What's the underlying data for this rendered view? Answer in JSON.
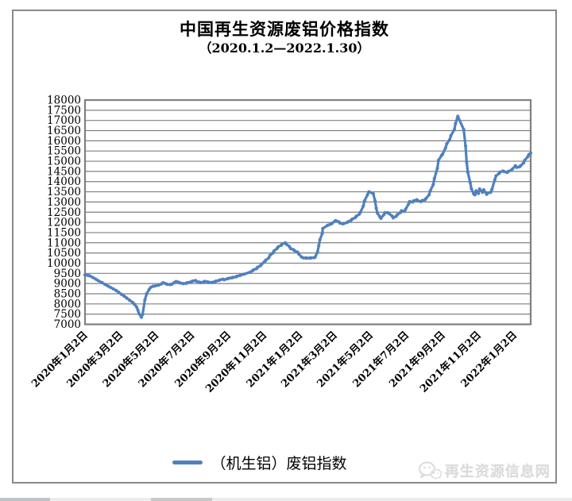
{
  "header": {
    "title": "中国再生资源废铝价格指数",
    "subtitle": "（2020.1.2—2022.1.30）"
  },
  "legend": {
    "label": "（机生铝）废铝指数",
    "line_color": "#4F81BD"
  },
  "watermark": {
    "text": "再生资源信息网",
    "icon": "chat-bubbles-icon",
    "color": "#dadada"
  },
  "colors": {
    "series": "#4F81BD",
    "gridline": "#808080",
    "frame_border": "#8a8a8a",
    "axis_text": "#000000"
  },
  "chart_data": {
    "type": "line",
    "title": "中国再生资源废铝价格指数",
    "subtitle": "（2020.1.2—2022.1.30）",
    "ylabel": "",
    "xlabel": "",
    "ylim": [
      7000,
      18000
    ],
    "y_ticks": [
      7000,
      7500,
      8000,
      8500,
      9000,
      9500,
      10000,
      10500,
      11000,
      11500,
      12000,
      12500,
      13000,
      13500,
      14000,
      14500,
      15000,
      15500,
      16000,
      16500,
      17000,
      17500,
      18000
    ],
    "grid": "horizontal-only",
    "legend_position": "bottom-center",
    "x_range": [
      "2020/1/2",
      "2022/1/30"
    ],
    "x_tick_labels": [
      {
        "label": "2020年1月2日",
        "date": "2020/1/2"
      },
      {
        "label": "2020年3月2日",
        "date": "2020/3/2"
      },
      {
        "label": "2020年5月2日",
        "date": "2020/5/2"
      },
      {
        "label": "2020年7月2日",
        "date": "2020/7/2"
      },
      {
        "label": "2020年9月2日",
        "date": "2020/9/2"
      },
      {
        "label": "2020年11月2日",
        "date": "2020/11/2"
      },
      {
        "label": "2021年1月2日",
        "date": "2021/1/2"
      },
      {
        "label": "2021年3月2日",
        "date": "2021/3/2"
      },
      {
        "label": "2021年5月2日",
        "date": "2021/5/2"
      },
      {
        "label": "2021年7月2日",
        "date": "2021/7/2"
      },
      {
        "label": "2021年9月2日",
        "date": "2021/9/2"
      },
      {
        "label": "2021年11月2日",
        "date": "2021/11/2"
      },
      {
        "label": "2022年1月2日",
        "date": "2022/1/2"
      }
    ],
    "series": [
      {
        "name": "（机生铝）废铝指数",
        "color": "#4F81BD",
        "points": [
          [
            "2020/1/2",
            9430
          ],
          [
            "2020/1/7",
            9400
          ],
          [
            "2020/1/10",
            9380
          ],
          [
            "2020/1/15",
            9300
          ],
          [
            "2020/1/20",
            9220
          ],
          [
            "2020/1/24",
            9150
          ],
          [
            "2020/1/31",
            9050
          ],
          [
            "2020/2/5",
            8960
          ],
          [
            "2020/2/10",
            8880
          ],
          [
            "2020/2/14",
            8820
          ],
          [
            "2020/2/19",
            8740
          ],
          [
            "2020/2/24",
            8660
          ],
          [
            "2020/2/28",
            8580
          ],
          [
            "2020/3/4",
            8470
          ],
          [
            "2020/3/9",
            8380
          ],
          [
            "2020/3/13",
            8290
          ],
          [
            "2020/3/18",
            8180
          ],
          [
            "2020/3/23",
            8080
          ],
          [
            "2020/3/26",
            7990
          ],
          [
            "2020/3/30",
            7850
          ],
          [
            "2020/4/1",
            7700
          ],
          [
            "2020/4/3",
            7520
          ],
          [
            "2020/4/7",
            7350
          ],
          [
            "2020/4/9",
            7480
          ],
          [
            "2020/4/13",
            8200
          ],
          [
            "2020/4/16",
            8500
          ],
          [
            "2020/4/20",
            8700
          ],
          [
            "2020/4/23",
            8820
          ],
          [
            "2020/4/27",
            8870
          ],
          [
            "2020/4/30",
            8880
          ],
          [
            "2020/5/6",
            8920
          ],
          [
            "2020/5/11",
            8980
          ],
          [
            "2020/5/14",
            9040
          ],
          [
            "2020/5/18",
            9000
          ],
          [
            "2020/5/21",
            8960
          ],
          [
            "2020/5/26",
            8950
          ],
          [
            "2020/5/29",
            8970
          ],
          [
            "2020/6/2",
            9050
          ],
          [
            "2020/6/5",
            9100
          ],
          [
            "2020/6/9",
            9070
          ],
          [
            "2020/6/12",
            9030
          ],
          [
            "2020/6/17",
            9000
          ],
          [
            "2020/6/22",
            9010
          ],
          [
            "2020/6/24",
            9040
          ],
          [
            "2020/6/30",
            9080
          ],
          [
            "2020/7/3",
            9120
          ],
          [
            "2020/7/8",
            9150
          ],
          [
            "2020/7/10",
            9110
          ],
          [
            "2020/7/15",
            9070
          ],
          [
            "2020/7/17",
            9050
          ],
          [
            "2020/7/22",
            9080
          ],
          [
            "2020/7/24",
            9110
          ],
          [
            "2020/7/29",
            9080
          ],
          [
            "2020/7/31",
            9060
          ],
          [
            "2020/8/5",
            9060
          ],
          [
            "2020/8/10",
            9090
          ],
          [
            "2020/8/12",
            9120
          ],
          [
            "2020/8/17",
            9150
          ],
          [
            "2020/8/19",
            9180
          ],
          [
            "2020/8/24",
            9210
          ],
          [
            "2020/8/26",
            9190
          ],
          [
            "2020/8/31",
            9230
          ],
          [
            "2020/9/3",
            9260
          ],
          [
            "2020/9/8",
            9280
          ],
          [
            "2020/9/10",
            9300
          ],
          [
            "2020/9/15",
            9330
          ],
          [
            "2020/9/17",
            9360
          ],
          [
            "2020/9/22",
            9400
          ],
          [
            "2020/9/24",
            9430
          ],
          [
            "2020/9/29",
            9460
          ],
          [
            "2020/10/9",
            9560
          ],
          [
            "2020/10/13",
            9620
          ],
          [
            "2020/10/15",
            9670
          ],
          [
            "2020/10/20",
            9730
          ],
          [
            "2020/10/22",
            9800
          ],
          [
            "2020/10/27",
            9880
          ],
          [
            "2020/10/29",
            9960
          ],
          [
            "2020/11/3",
            10080
          ],
          [
            "2020/11/5",
            10150
          ],
          [
            "2020/11/10",
            10260
          ],
          [
            "2020/11/12",
            10380
          ],
          [
            "2020/11/17",
            10500
          ],
          [
            "2020/11/19",
            10600
          ],
          [
            "2020/11/24",
            10720
          ],
          [
            "2020/11/26",
            10800
          ],
          [
            "2020/12/1",
            10880
          ],
          [
            "2020/12/3",
            10940
          ],
          [
            "2020/12/8",
            11000
          ],
          [
            "2020/12/10",
            10930
          ],
          [
            "2020/12/15",
            10820
          ],
          [
            "2020/12/17",
            10720
          ],
          [
            "2020/12/22",
            10660
          ],
          [
            "2020/12/24",
            10610
          ],
          [
            "2020/12/29",
            10540
          ],
          [
            "2020/12/31",
            10450
          ],
          [
            "2021/1/5",
            10300
          ],
          [
            "2021/1/8",
            10260
          ],
          [
            "2021/1/12",
            10250
          ],
          [
            "2021/1/14",
            10250
          ],
          [
            "2021/1/19",
            10250
          ],
          [
            "2021/1/21",
            10260
          ],
          [
            "2021/1/26",
            10270
          ],
          [
            "2021/1/28",
            10300
          ],
          [
            "2021/2/1",
            10550
          ],
          [
            "2021/2/3",
            10850
          ],
          [
            "2021/2/5",
            11150
          ],
          [
            "2021/2/9",
            11450
          ],
          [
            "2021/2/10",
            11700
          ],
          [
            "2021/2/18",
            11850
          ],
          [
            "2021/2/22",
            11900
          ],
          [
            "2021/2/24",
            11930
          ],
          [
            "2021/2/26",
            11960
          ],
          [
            "2021/3/2",
            12050
          ],
          [
            "2021/3/4",
            12090
          ],
          [
            "2021/3/9",
            12030
          ],
          [
            "2021/3/11",
            11970
          ],
          [
            "2021/3/16",
            11930
          ],
          [
            "2021/3/18",
            11950
          ],
          [
            "2021/3/23",
            11990
          ],
          [
            "2021/3/25",
            12030
          ],
          [
            "2021/3/30",
            12100
          ],
          [
            "2021/4/1",
            12160
          ],
          [
            "2021/4/6",
            12230
          ],
          [
            "2021/4/8",
            12300
          ],
          [
            "2021/4/13",
            12400
          ],
          [
            "2021/4/15",
            12500
          ],
          [
            "2021/4/20",
            12800
          ],
          [
            "2021/4/22",
            13050
          ],
          [
            "2021/4/27",
            13350
          ],
          [
            "2021/4/29",
            13480
          ],
          [
            "2021/4/30",
            13500
          ],
          [
            "2021/5/7",
            13400
          ],
          [
            "2021/5/10",
            13050
          ],
          [
            "2021/5/12",
            12700
          ],
          [
            "2021/5/14",
            12450
          ],
          [
            "2021/5/18",
            12280
          ],
          [
            "2021/5/20",
            12200
          ],
          [
            "2021/5/25",
            12380
          ],
          [
            "2021/5/27",
            12480
          ],
          [
            "2021/6/1",
            12470
          ],
          [
            "2021/6/3",
            12430
          ],
          [
            "2021/6/8",
            12310
          ],
          [
            "2021/6/10",
            12220
          ],
          [
            "2021/6/15",
            12300
          ],
          [
            "2021/6/17",
            12380
          ],
          [
            "2021/6/22",
            12480
          ],
          [
            "2021/6/24",
            12570
          ],
          [
            "2021/6/29",
            12540
          ],
          [
            "2021/7/1",
            12650
          ],
          [
            "2021/7/6",
            12900
          ],
          [
            "2021/7/8",
            13020
          ],
          [
            "2021/7/13",
            13000
          ],
          [
            "2021/7/15",
            13060
          ],
          [
            "2021/7/20",
            13110
          ],
          [
            "2021/7/22",
            13060
          ],
          [
            "2021/7/27",
            13020
          ],
          [
            "2021/7/29",
            13070
          ],
          [
            "2021/8/3",
            13110
          ],
          [
            "2021/8/5",
            13180
          ],
          [
            "2021/8/10",
            13350
          ],
          [
            "2021/8/12",
            13550
          ],
          [
            "2021/8/17",
            13850
          ],
          [
            "2021/8/19",
            14150
          ],
          [
            "2021/8/24",
            14650
          ],
          [
            "2021/8/26",
            15050
          ],
          [
            "2021/8/31",
            15280
          ],
          [
            "2021/9/2",
            15350
          ],
          [
            "2021/9/7",
            15650
          ],
          [
            "2021/9/9",
            15850
          ],
          [
            "2021/9/14",
            16050
          ],
          [
            "2021/9/16",
            16250
          ],
          [
            "2021/9/22",
            16550
          ],
          [
            "2021/9/24",
            16850
          ],
          [
            "2021/9/27",
            17100
          ],
          [
            "2021/9/28",
            17200
          ],
          [
            "2021/10/8",
            16550
          ],
          [
            "2021/10/11",
            15750
          ],
          [
            "2021/10/13",
            14950
          ],
          [
            "2021/10/15",
            14450
          ],
          [
            "2021/10/19",
            13950
          ],
          [
            "2021/10/21",
            13650
          ],
          [
            "2021/10/25",
            13400
          ],
          [
            "2021/10/27",
            13350
          ],
          [
            "2021/10/29",
            13550
          ],
          [
            "2021/11/2",
            13420
          ],
          [
            "2021/11/4",
            13640
          ],
          [
            "2021/11/9",
            13480
          ],
          [
            "2021/11/11",
            13600
          ],
          [
            "2021/11/16",
            13380
          ],
          [
            "2021/11/18",
            13440
          ],
          [
            "2021/11/23",
            13480
          ],
          [
            "2021/11/25",
            13620
          ],
          [
            "2021/11/30",
            14100
          ],
          [
            "2021/12/2",
            14280
          ],
          [
            "2021/12/7",
            14400
          ],
          [
            "2021/12/9",
            14470
          ],
          [
            "2021/12/14",
            14520
          ],
          [
            "2021/12/16",
            14490
          ],
          [
            "2021/12/21",
            14450
          ],
          [
            "2021/12/23",
            14500
          ],
          [
            "2021/12/28",
            14560
          ],
          [
            "2021/12/30",
            14620
          ],
          [
            "2022/1/4",
            14780
          ],
          [
            "2022/1/6",
            14700
          ],
          [
            "2022/1/11",
            14730
          ],
          [
            "2022/1/13",
            14780
          ],
          [
            "2022/1/18",
            14920
          ],
          [
            "2022/1/20",
            15050
          ],
          [
            "2022/1/25",
            15220
          ],
          [
            "2022/1/27",
            15330
          ],
          [
            "2022/1/30",
            15400
          ]
        ]
      }
    ]
  }
}
